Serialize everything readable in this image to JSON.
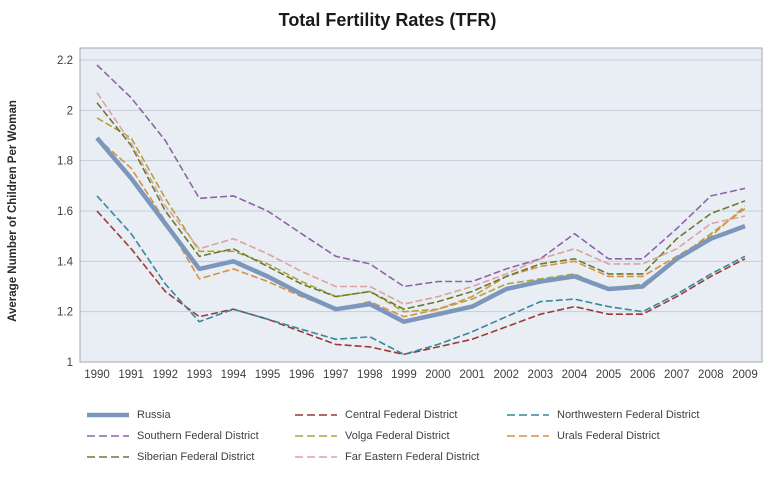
{
  "page": {
    "background": "#FFFFFF"
  },
  "chart_data": {
    "type": "line",
    "title": "Total Fertility Rates (TFR)",
    "xlabel": "",
    "ylabel": "Average Number of Children Per Woman",
    "ylim": [
      1,
      2.2
    ],
    "yticks": [
      1,
      1.2,
      1.4,
      1.6,
      1.8,
      2,
      2.2
    ],
    "grid": true,
    "legend_position": "bottom",
    "plot_bg": "#E9EEF4",
    "grid_color": "#C3CEDA",
    "border_color": "#9FA8B0",
    "axis_text_color": "#3F3F3F",
    "x": [
      1990,
      1991,
      1992,
      1993,
      1994,
      1995,
      1996,
      1997,
      1998,
      1999,
      2000,
      2001,
      2002,
      2003,
      2004,
      2005,
      2006,
      2007,
      2008,
      2009
    ],
    "series": [
      {
        "name": "Russia",
        "color": "#7D96BC",
        "dash": "solid",
        "line_width": 4.5,
        "values": [
          1.89,
          1.73,
          1.55,
          1.37,
          1.4,
          1.34,
          1.27,
          1.21,
          1.23,
          1.16,
          1.19,
          1.22,
          1.29,
          1.32,
          1.34,
          1.29,
          1.3,
          1.41,
          1.49,
          1.54
        ]
      },
      {
        "name": "Central Federal District",
        "color": "#9C3A36",
        "dash": "dashed",
        "line_width": 1.6,
        "values": [
          1.6,
          1.45,
          1.28,
          1.18,
          1.21,
          1.17,
          1.12,
          1.07,
          1.06,
          1.03,
          1.06,
          1.09,
          1.14,
          1.19,
          1.22,
          1.19,
          1.19,
          1.26,
          1.34,
          1.41
        ]
      },
      {
        "name": "Northwestern Federal District",
        "color": "#38879C",
        "dash": "dashed",
        "line_width": 1.6,
        "values": [
          1.66,
          1.51,
          1.31,
          1.16,
          1.21,
          1.17,
          1.13,
          1.09,
          1.1,
          1.03,
          1.07,
          1.12,
          1.18,
          1.24,
          1.25,
          1.22,
          1.2,
          1.27,
          1.35,
          1.42
        ]
      },
      {
        "name": "Southern Federal District",
        "color": "#8F63A8",
        "dash": "dashed",
        "line_width": 1.6,
        "values": [
          2.18,
          2.05,
          1.88,
          1.65,
          1.66,
          1.6,
          1.51,
          1.42,
          1.39,
          1.3,
          1.32,
          1.32,
          1.37,
          1.41,
          1.51,
          1.41,
          1.41,
          1.53,
          1.66,
          1.69
        ]
      },
      {
        "name": "Volga Federal District",
        "color": "#AFA33A",
        "dash": "dashed",
        "line_width": 1.6,
        "values": [
          1.97,
          1.89,
          1.65,
          1.44,
          1.44,
          1.39,
          1.32,
          1.26,
          1.28,
          1.2,
          1.21,
          1.25,
          1.31,
          1.33,
          1.35,
          1.29,
          1.31,
          1.41,
          1.51,
          1.61
        ]
      },
      {
        "name": "Urals Federal District",
        "color": "#D9913F",
        "dash": "dashed",
        "line_width": 1.6,
        "values": [
          1.89,
          1.77,
          1.56,
          1.33,
          1.37,
          1.32,
          1.26,
          1.21,
          1.24,
          1.18,
          1.21,
          1.26,
          1.34,
          1.38,
          1.4,
          1.34,
          1.34,
          1.42,
          1.5,
          1.62
        ]
      },
      {
        "name": "Siberian Federal District",
        "color": "#6E7A2D",
        "dash": "dashed",
        "line_width": 1.6,
        "values": [
          2.03,
          1.86,
          1.6,
          1.42,
          1.45,
          1.38,
          1.31,
          1.26,
          1.28,
          1.21,
          1.24,
          1.28,
          1.34,
          1.39,
          1.41,
          1.35,
          1.35,
          1.49,
          1.59,
          1.64
        ]
      },
      {
        "name": "Far Eastern Federal District",
        "color": "#DCA3A0",
        "dash": "dashed",
        "line_width": 1.6,
        "values": [
          2.07,
          1.87,
          1.62,
          1.45,
          1.49,
          1.43,
          1.36,
          1.3,
          1.3,
          1.23,
          1.26,
          1.3,
          1.35,
          1.41,
          1.45,
          1.39,
          1.39,
          1.45,
          1.55,
          1.58
        ]
      }
    ]
  }
}
